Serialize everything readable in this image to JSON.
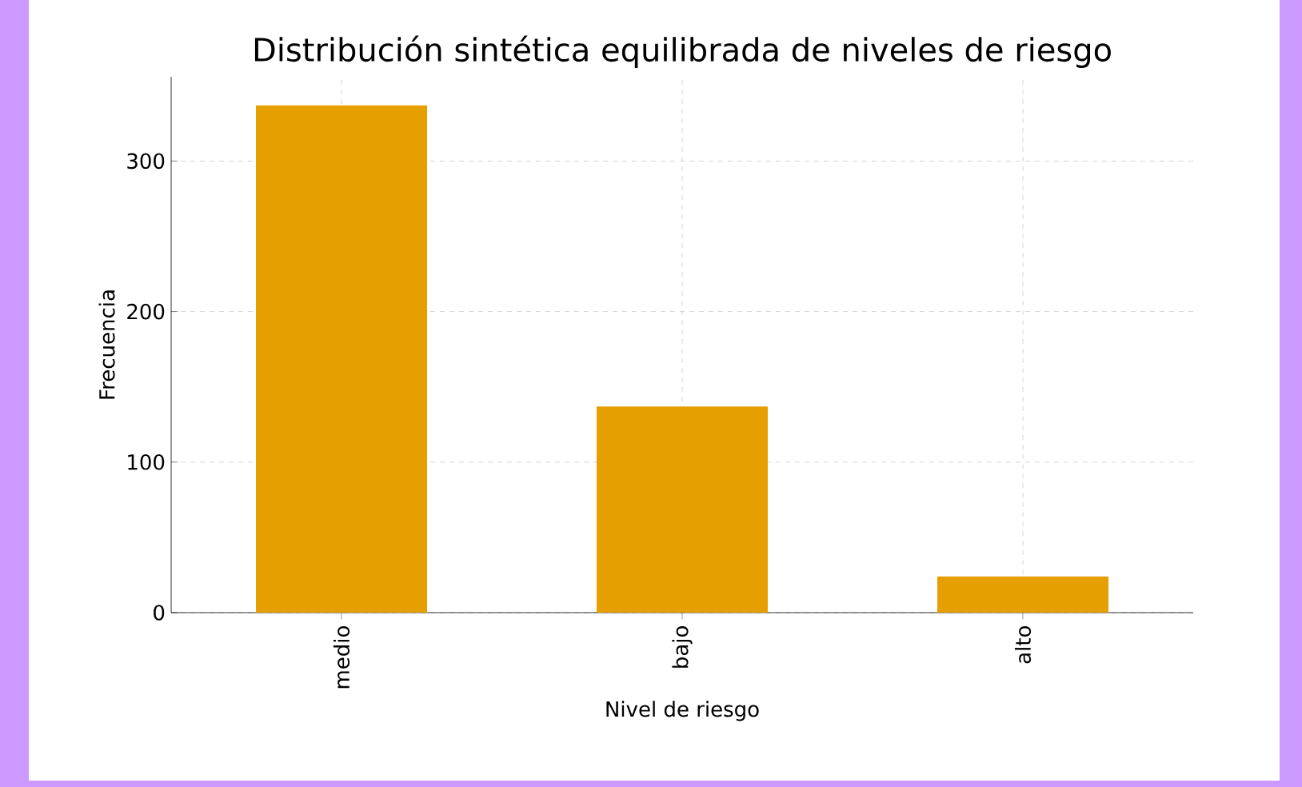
{
  "chart_data": {
    "type": "bar",
    "title": "Distribución sintética equilibrada de niveles de riesgo",
    "xlabel": "Nivel de riesgo",
    "ylabel": "Frecuencia",
    "categories": [
      "medio",
      "bajo",
      "alto"
    ],
    "values": [
      337,
      137,
      24
    ],
    "color": "#e69f00",
    "ylim": [
      0,
      356
    ],
    "yticks": [
      0,
      100,
      200,
      300
    ],
    "grid": true
  }
}
